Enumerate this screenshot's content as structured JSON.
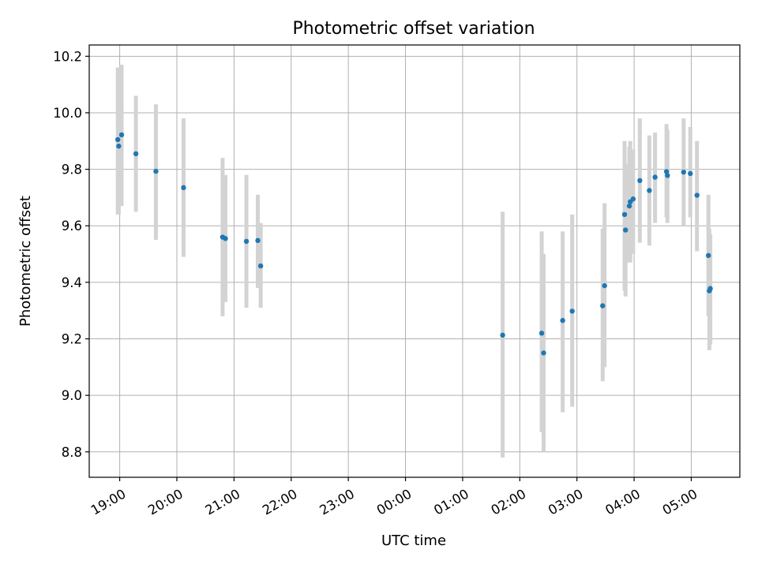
{
  "chart_data": {
    "type": "scatter",
    "title": "Photometric offset variation",
    "xlabel": "UTC time",
    "ylabel": "Photometric offset",
    "x_tick_labels": [
      "19:00",
      "20:00",
      "21:00",
      "22:00",
      "23:00",
      "00:00",
      "01:00",
      "02:00",
      "03:00",
      "04:00",
      "05:00"
    ],
    "y_tick_labels": [
      "8.8",
      "9.0",
      "9.2",
      "9.4",
      "9.6",
      "9.8",
      "10.0",
      "10.2"
    ],
    "y_ticks": [
      8.8,
      9.0,
      9.2,
      9.4,
      9.6,
      9.8,
      10.0,
      10.2
    ],
    "xlim": [
      "18:28",
      "05:51"
    ],
    "ylim": [
      8.71,
      10.24
    ],
    "grid": true,
    "marker_color": "#1f77b4",
    "errorbar_color": "#d3d3d3",
    "points": [
      {
        "time": "18:58",
        "y": 9.905,
        "lo": 9.64,
        "hi": 10.16
      },
      {
        "time": "18:59",
        "y": 9.882,
        "lo": 9.64,
        "hi": 10.16
      },
      {
        "time": "19:02",
        "y": 9.922,
        "lo": 9.67,
        "hi": 10.17
      },
      {
        "time": "19:17",
        "y": 9.855,
        "lo": 9.65,
        "hi": 10.06
      },
      {
        "time": "19:38",
        "y": 9.793,
        "lo": 9.55,
        "hi": 10.03
      },
      {
        "time": "20:07",
        "y": 9.735,
        "lo": 9.49,
        "hi": 9.98
      },
      {
        "time": "20:48",
        "y": 9.56,
        "lo": 9.28,
        "hi": 9.84
      },
      {
        "time": "20:51",
        "y": 9.555,
        "lo": 9.33,
        "hi": 9.78
      },
      {
        "time": "21:13",
        "y": 9.545,
        "lo": 9.31,
        "hi": 9.78
      },
      {
        "time": "21:25",
        "y": 9.548,
        "lo": 9.38,
        "hi": 9.71
      },
      {
        "time": "21:28",
        "y": 9.458,
        "lo": 9.31,
        "hi": 9.61
      },
      {
        "time": "01:42",
        "y": 9.213,
        "lo": 8.78,
        "hi": 9.65
      },
      {
        "time": "02:23",
        "y": 9.22,
        "lo": 8.87,
        "hi": 9.58
      },
      {
        "time": "02:25",
        "y": 9.15,
        "lo": 8.8,
        "hi": 9.5
      },
      {
        "time": "02:45",
        "y": 9.265,
        "lo": 8.94,
        "hi": 9.58
      },
      {
        "time": "02:55",
        "y": 9.298,
        "lo": 8.96,
        "hi": 9.64
      },
      {
        "time": "03:27",
        "y": 9.317,
        "lo": 9.05,
        "hi": 9.59
      },
      {
        "time": "03:29",
        "y": 9.388,
        "lo": 9.1,
        "hi": 9.68
      },
      {
        "time": "03:50",
        "y": 9.64,
        "lo": 9.37,
        "hi": 9.9
      },
      {
        "time": "03:51",
        "y": 9.585,
        "lo": 9.35,
        "hi": 9.82
      },
      {
        "time": "03:55",
        "y": 9.67,
        "lo": 9.47,
        "hi": 9.88
      },
      {
        "time": "03:56",
        "y": 9.685,
        "lo": 9.47,
        "hi": 9.9
      },
      {
        "time": "03:59",
        "y": 9.695,
        "lo": 9.5,
        "hi": 9.87
      },
      {
        "time": "04:06",
        "y": 9.76,
        "lo": 9.54,
        "hi": 9.98
      },
      {
        "time": "04:16",
        "y": 9.725,
        "lo": 9.53,
        "hi": 9.92
      },
      {
        "time": "04:22",
        "y": 9.772,
        "lo": 9.61,
        "hi": 9.93
      },
      {
        "time": "04:34",
        "y": 9.792,
        "lo": 9.63,
        "hi": 9.96
      },
      {
        "time": "04:35",
        "y": 9.778,
        "lo": 9.61,
        "hi": 9.94
      },
      {
        "time": "04:52",
        "y": 9.79,
        "lo": 9.6,
        "hi": 9.98
      },
      {
        "time": "04:59",
        "y": 9.785,
        "lo": 9.63,
        "hi": 9.95
      },
      {
        "time": "05:06",
        "y": 9.708,
        "lo": 9.51,
        "hi": 9.9
      },
      {
        "time": "05:18",
        "y": 9.495,
        "lo": 9.28,
        "hi": 9.71
      },
      {
        "time": "05:19",
        "y": 9.37,
        "lo": 9.16,
        "hi": 9.59
      },
      {
        "time": "05:20",
        "y": 9.378,
        "lo": 9.18,
        "hi": 9.57
      }
    ]
  }
}
